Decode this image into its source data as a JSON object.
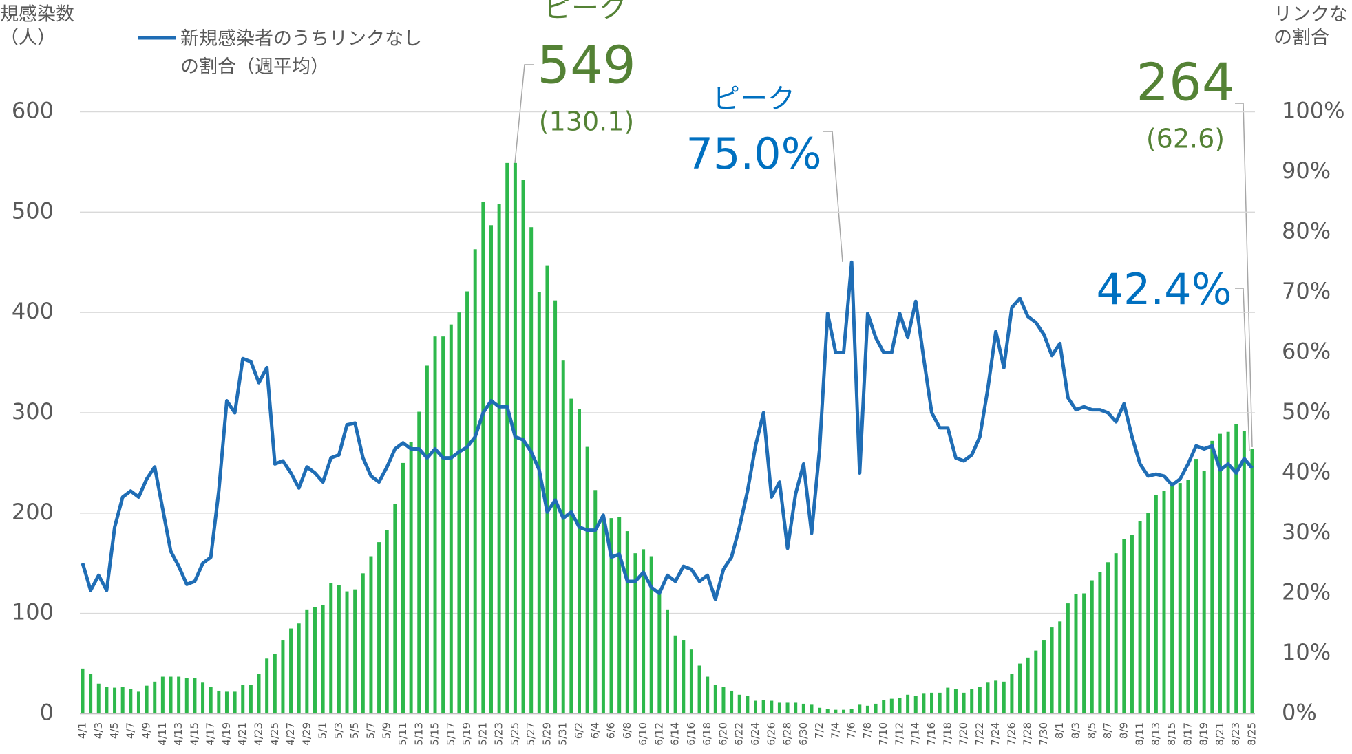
{
  "chart_data": {
    "type": "bar_line",
    "y_axis_label": [
      "規感染数",
      "（人）"
    ],
    "y2_axis_label": [
      "リンクな",
      "の割合"
    ],
    "categories": [
      "4/1",
      null,
      "4/3",
      null,
      "4/5",
      null,
      "4/7",
      null,
      "4/9",
      null,
      "4/11",
      null,
      "4/13",
      null,
      "4/15",
      null,
      "4/17",
      null,
      "4/19",
      null,
      "4/21",
      null,
      "4/23",
      null,
      "4/25",
      null,
      "4/27",
      null,
      "4/29",
      null,
      "5/1",
      null,
      "5/3",
      null,
      "5/5",
      null,
      "5/7",
      null,
      "5/9",
      null,
      "5/11",
      null,
      "5/13",
      null,
      "5/15",
      null,
      "5/17",
      null,
      "5/19",
      null,
      "5/21",
      null,
      "5/23",
      null,
      "5/25",
      null,
      "5/27",
      null,
      "5/29",
      null,
      "5/31",
      null,
      "6/2",
      null,
      "6/4",
      null,
      "6/6",
      null,
      "6/8",
      null,
      "6/10",
      null,
      "6/12",
      null,
      "6/14",
      null,
      "6/16",
      null,
      "6/18",
      null,
      "6/20",
      null,
      "6/22",
      null,
      "6/24",
      null,
      "6/26",
      null,
      "6/28",
      null,
      "6/30",
      null,
      "7/2",
      null,
      "7/4",
      null,
      "7/6",
      null,
      "7/8",
      null,
      "7/10",
      null,
      "7/12",
      null,
      "7/14",
      null,
      "7/16",
      null,
      "7/18",
      null,
      "7/20",
      null,
      "7/22",
      null,
      "7/24",
      null,
      "7/26",
      null,
      "7/28",
      null,
      "7/30",
      null,
      "8/1",
      null,
      "8/3",
      null,
      "8/5",
      null,
      "8/7",
      null,
      "8/9",
      null,
      "8/11",
      null,
      "8/13",
      null,
      "8/15",
      null,
      "8/17",
      null,
      "8/19",
      null,
      "8/21",
      null,
      "8/23",
      null,
      "8/25"
    ],
    "series": [
      {
        "kind": "bar",
        "color": "#2db84b",
        "values": [
          45,
          40,
          30,
          27,
          26,
          27,
          25,
          22,
          28,
          32,
          37,
          37,
          37,
          36,
          36,
          31,
          27,
          23,
          22,
          22,
          29,
          29,
          40,
          55,
          60,
          73,
          85,
          90,
          104,
          106,
          108,
          130,
          128,
          122,
          124,
          140,
          157,
          171,
          183,
          209,
          250,
          271,
          301,
          347,
          376,
          376,
          388,
          400,
          421,
          463,
          510,
          487,
          508,
          549,
          549,
          532,
          485,
          420,
          447,
          412,
          352,
          314,
          304,
          266,
          223,
          197,
          195,
          196,
          182,
          160,
          164,
          157,
          124,
          104,
          78,
          73,
          64,
          48,
          37,
          29,
          27,
          23,
          19,
          18,
          13,
          14,
          13,
          11,
          11,
          11,
          10,
          9,
          6,
          5,
          4,
          4,
          5,
          9,
          8,
          10,
          14,
          15,
          16,
          19,
          18,
          20,
          21,
          21,
          26,
          25,
          21,
          25,
          27,
          31,
          33,
          32,
          40,
          50,
          56,
          63,
          73,
          86,
          92,
          110,
          119,
          120,
          133,
          141,
          151,
          160,
          174,
          178,
          192,
          200,
          218,
          222,
          227,
          230,
          233,
          254,
          242,
          272,
          279,
          281,
          289,
          282,
          264
        ]
      },
      {
        "kind": "line",
        "axis": "y2",
        "name": "新規感染者のうちリンクなしの割合（週平均）",
        "color": "#1f6db5",
        "values": [
          25,
          20.5,
          23,
          20.5,
          31,
          36,
          37,
          36,
          39,
          41,
          34,
          27,
          24.5,
          21.5,
          22,
          25,
          26,
          37,
          52,
          50,
          59,
          58.5,
          55,
          57.5,
          41.5,
          42,
          40,
          37.5,
          41,
          40,
          38.5,
          42.5,
          43,
          48,
          48.3,
          42.5,
          39.5,
          38.5,
          41,
          44,
          45,
          44,
          44,
          42.5,
          44,
          42.5,
          42.5,
          43.5,
          44.3,
          46,
          50,
          52,
          51,
          51,
          46,
          45.5,
          43.5,
          40.5,
          33.5,
          35.5,
          32.5,
          33.5,
          31,
          30.5,
          30.5,
          33,
          26,
          26.5,
          22,
          22,
          23.5,
          21,
          20,
          23,
          22,
          24.5,
          24,
          22,
          23,
          19,
          24,
          26,
          31,
          37,
          44.5,
          50,
          36,
          38.5,
          27.5,
          36.5,
          41.5,
          30,
          44,
          66.5,
          60,
          60,
          75,
          40,
          66.5,
          62.5,
          60,
          60,
          66.5,
          62.5,
          68.5,
          59,
          50,
          47.5,
          47.5,
          42.5,
          42,
          43,
          46,
          54,
          63.5,
          57.5,
          67.5,
          69,
          66,
          65,
          63,
          59.5,
          61.5,
          52.5,
          50.5,
          51,
          50.5,
          50.5,
          50,
          48.5,
          51.5,
          46,
          41.5,
          39.5,
          39.8,
          39.5,
          38,
          39,
          41.5,
          44.5,
          44,
          44.5,
          40.5,
          41.5,
          40,
          42.4,
          40.8
        ]
      }
    ],
    "ylim": [
      0,
      600
    ],
    "yticks": [
      0,
      100,
      200,
      300,
      400,
      500,
      600
    ],
    "y2lim": [
      0,
      100
    ],
    "y2ticks": [
      {
        "value": 0,
        "label": "0%"
      },
      {
        "value": 10,
        "label": "10%"
      },
      {
        "value": 20,
        "label": "20%"
      },
      {
        "value": 30,
        "label": "30%"
      },
      {
        "value": 40,
        "label": "40%"
      },
      {
        "value": 50,
        "label": "50%"
      },
      {
        "value": 60,
        "label": "60%"
      },
      {
        "value": 70,
        "label": "70%"
      },
      {
        "value": 80,
        "label": "80%"
      },
      {
        "value": 90,
        "label": "90%"
      },
      {
        "value": 100,
        "label": "100%"
      }
    ],
    "grid": true,
    "annotations": [
      {
        "text": "ピーク",
        "color": "#548235"
      },
      {
        "text": "549",
        "color": "#548235"
      },
      {
        "text": "(130.1)",
        "color": "#548235"
      },
      {
        "text": "ピーク",
        "color": "#0070c0"
      },
      {
        "text": "75.0%",
        "color": "#0070c0"
      },
      {
        "text": "264",
        "color": "#548235"
      },
      {
        "text": "(62.6)",
        "color": "#548235"
      },
      {
        "text": "42.4%",
        "color": "#0070c0"
      }
    ]
  }
}
